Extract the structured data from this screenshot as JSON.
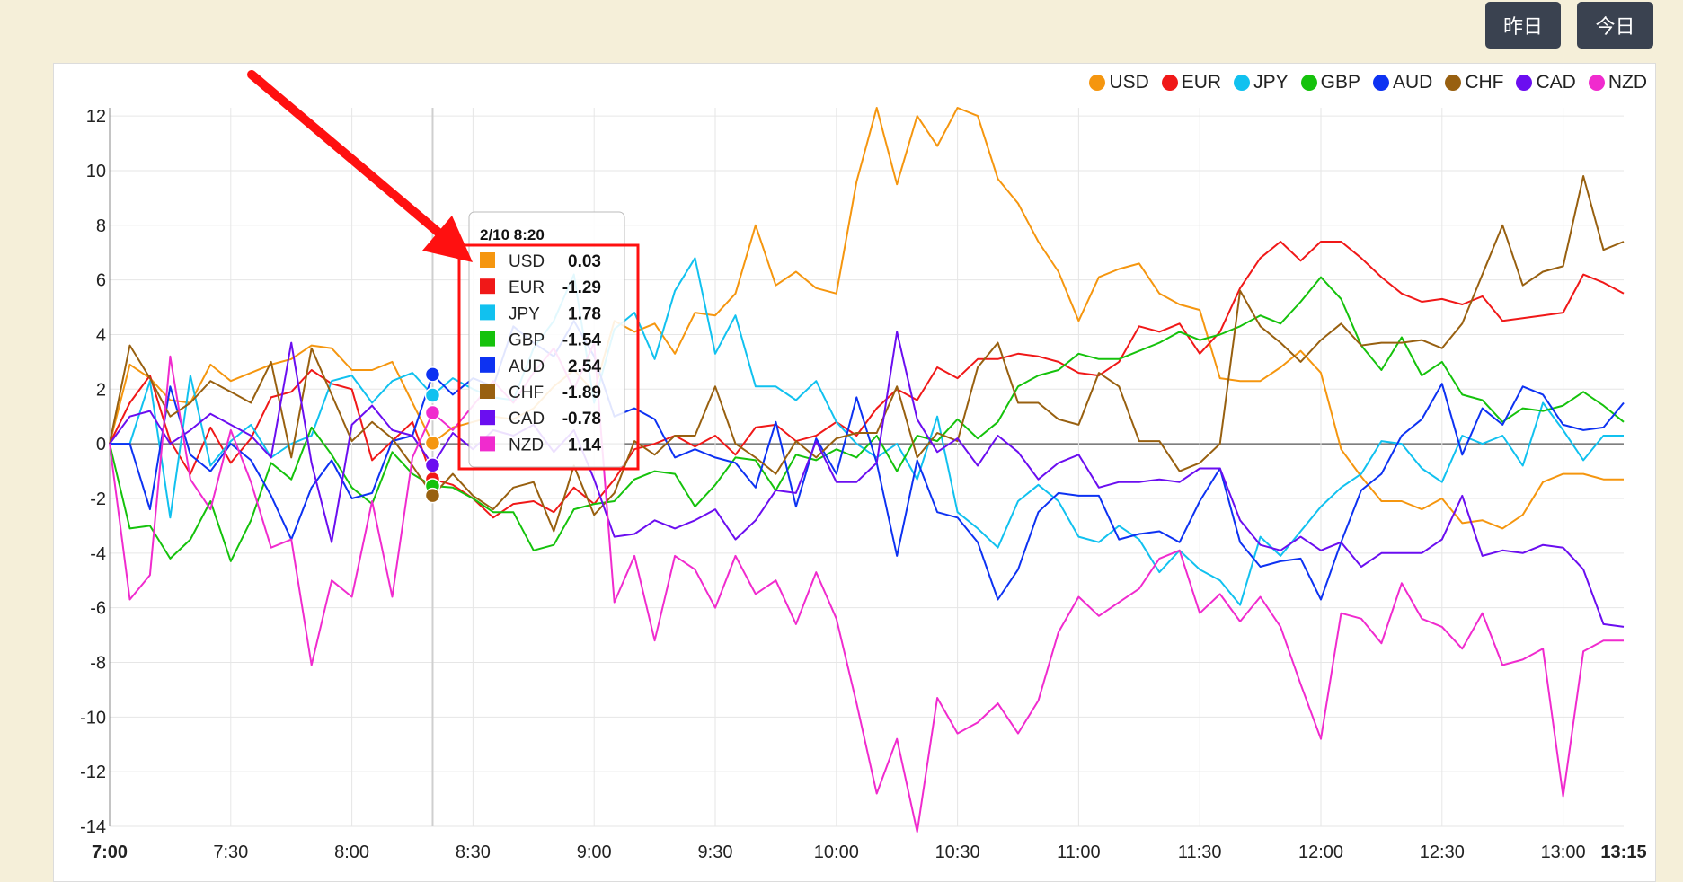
{
  "toolbar": {
    "yesterday_label": "昨日",
    "today_label": "今日"
  },
  "chart_data": {
    "type": "line",
    "title": "",
    "xlabel": "",
    "ylabel": "",
    "ylim": [
      -14,
      12.3
    ],
    "yticks": [
      12,
      10,
      8,
      6,
      4,
      2,
      0,
      -2,
      -4,
      -6,
      -8,
      -10,
      -12,
      -14
    ],
    "xticks": [
      "7:00",
      "7:30",
      "8:00",
      "8:30",
      "9:00",
      "9:30",
      "10:00",
      "10:30",
      "11:00",
      "11:30",
      "12:00",
      "12:30",
      "13:00",
      "13:15"
    ],
    "grid": true,
    "legend_position": "top-right",
    "x": [
      "7:00",
      "7:05",
      "7:10",
      "7:15",
      "7:20",
      "7:25",
      "7:30",
      "7:35",
      "7:40",
      "7:45",
      "7:50",
      "7:55",
      "8:00",
      "8:05",
      "8:10",
      "8:15",
      "8:20",
      "8:25",
      "8:30",
      "8:35",
      "8:40",
      "8:45",
      "8:50",
      "8:55",
      "9:00",
      "9:05",
      "9:10",
      "9:15",
      "9:20",
      "9:25",
      "9:30",
      "9:35",
      "9:40",
      "9:45",
      "9:50",
      "9:55",
      "10:00",
      "10:05",
      "10:10",
      "10:15",
      "10:20",
      "10:25",
      "10:30",
      "10:35",
      "10:40",
      "10:45",
      "10:50",
      "10:55",
      "11:00",
      "11:05",
      "11:10",
      "11:15",
      "11:20",
      "11:25",
      "11:30",
      "11:35",
      "11:40",
      "11:45",
      "11:50",
      "11:55",
      "12:00",
      "12:05",
      "12:10",
      "12:15",
      "12:20",
      "12:25",
      "12:30",
      "12:35",
      "12:40",
      "12:45",
      "12:50",
      "12:55",
      "13:00",
      "13:05",
      "13:10",
      "13:15"
    ],
    "series": [
      {
        "name": "USD",
        "color": "#f5960f",
        "values": [
          0,
          2.9,
          2.4,
          1.6,
          1.5,
          2.9,
          2.3,
          2.6,
          2.9,
          3.1,
          3.6,
          3.5,
          2.7,
          2.7,
          3,
          1.5,
          0.03,
          0.6,
          0.8,
          1,
          0.9,
          1.3,
          2.1,
          2.7,
          1.9,
          4.5,
          4.1,
          4.4,
          3.3,
          4.8,
          4.7,
          5.5,
          8,
          5.8,
          6.3,
          5.7,
          5.5,
          9.6,
          12.3,
          9.5,
          12,
          10.9,
          12.3,
          12,
          9.7,
          8.8,
          7.4,
          6.3,
          4.5,
          6.1,
          6.4,
          6.6,
          5.5,
          5.1,
          4.9,
          2.4,
          2.3,
          2.3,
          2.8,
          3.4,
          2.6,
          -0.2,
          -1.2,
          -2.1,
          -2.1,
          -2.4,
          -2,
          -2.9,
          -2.8,
          -3.1,
          -2.6,
          -1.4,
          -1.1,
          -1.1,
          -1.3,
          -1.3
        ]
      },
      {
        "name": "EUR",
        "color": "#f01818",
        "values": [
          0,
          1.5,
          2.5,
          0.1,
          -1.1,
          0.6,
          -0.7,
          0.2,
          1.7,
          1.9,
          2.7,
          2.2,
          2,
          -0.6,
          0.1,
          0.8,
          -1.29,
          -1.5,
          -2,
          -2.7,
          -2.2,
          -2.1,
          -2.5,
          -1.6,
          -2.2,
          -1.3,
          -0.2,
          0,
          0.3,
          -0.1,
          0.3,
          -0.4,
          0.6,
          0.7,
          0.1,
          0.3,
          0.8,
          0.3,
          1.3,
          2,
          1.6,
          2.8,
          2.4,
          3.1,
          3.1,
          3.3,
          3.2,
          3,
          2.6,
          2.5,
          3,
          4.3,
          4.1,
          4.4,
          3.3,
          4.1,
          5.7,
          6.8,
          7.4,
          6.7,
          7.4,
          7.4,
          6.8,
          6.1,
          5.5,
          5.2,
          5.3,
          5.1,
          5.4,
          4.5,
          4.6,
          4.7,
          4.8,
          6.2,
          5.9,
          5.5
        ]
      },
      {
        "name": "JPY",
        "color": "#11c1ef",
        "values": [
          0,
          0,
          2.3,
          -2.7,
          2.5,
          -0.8,
          0.1,
          0.7,
          -0.5,
          0,
          0.3,
          2.3,
          2.5,
          1.5,
          2.3,
          2.6,
          1.78,
          2.4,
          2,
          1.7,
          1.6,
          3.5,
          4.5,
          6.2,
          1.5,
          4.2,
          4.8,
          3.1,
          5.6,
          6.8,
          3.3,
          4.7,
          2.1,
          2.1,
          1.6,
          2.3,
          0.8,
          0,
          -0.5,
          0,
          -1.3,
          1,
          -2.5,
          -3.1,
          -3.8,
          -2.1,
          -1.5,
          -2.1,
          -3.4,
          -3.6,
          -3,
          -3.5,
          -4.7,
          -3.9,
          -4.6,
          -5,
          -5.9,
          -3.4,
          -4.1,
          -3.2,
          -2.3,
          -1.6,
          -1.1,
          0.1,
          0,
          -0.9,
          -1.4,
          0.3,
          0,
          0.3,
          -0.8,
          1.5,
          0.5,
          -0.6,
          0.3,
          0.3
        ]
      },
      {
        "name": "GBP",
        "color": "#15c20c",
        "values": [
          0,
          -3.1,
          -3,
          -4.2,
          -3.5,
          -2.1,
          -4.3,
          -2.8,
          -0.7,
          -1.3,
          0.6,
          -0.4,
          -1.6,
          -2.2,
          -0.3,
          -1.1,
          -1.54,
          -1.6,
          -2,
          -2.5,
          -2.5,
          -3.9,
          -3.7,
          -2.4,
          -2.2,
          -2.1,
          -1.3,
          -1,
          -1.1,
          -2.3,
          -1.5,
          -0.5,
          -0.6,
          -1.7,
          -0.4,
          -0.6,
          -0.2,
          -0.5,
          0.3,
          -1,
          0.3,
          0.1,
          0.9,
          0.2,
          0.8,
          2.1,
          2.5,
          2.7,
          3.3,
          3.1,
          3.1,
          3.4,
          3.7,
          4.1,
          3.8,
          4,
          4.3,
          4.7,
          4.4,
          5.2,
          6.1,
          5.3,
          3.6,
          2.7,
          3.9,
          2.5,
          3,
          1.8,
          1.6,
          0.8,
          1.3,
          1.2,
          1.4,
          1.9,
          1.4,
          0.8
        ]
      },
      {
        "name": "AUD",
        "color": "#0d32f2",
        "values": [
          0,
          0,
          -2.4,
          2.1,
          -0.4,
          -1,
          0,
          -0.6,
          -1.9,
          -3.5,
          -1.6,
          -0.6,
          -2,
          -1.8,
          0.1,
          0.3,
          2.54,
          1.8,
          2.4,
          2.1,
          4.3,
          3.7,
          3.2,
          4.5,
          3.2,
          1,
          1.3,
          0.9,
          -0.5,
          -0.2,
          -0.5,
          -0.7,
          -1.6,
          0.8,
          -2.3,
          0.2,
          -1.1,
          1.7,
          -0.7,
          -4.1,
          -0.6,
          -2.5,
          -2.7,
          -3.6,
          -5.7,
          -4.6,
          -2.5,
          -1.8,
          -1.9,
          -1.9,
          -3.5,
          -3.3,
          -3.2,
          -3.6,
          -2.1,
          -0.9,
          -3.6,
          -4.5,
          -4.3,
          -4.2,
          -5.7,
          -3.6,
          -1.7,
          -1.1,
          0.3,
          0.9,
          2.2,
          -0.4,
          1.3,
          0.7,
          2.1,
          1.8,
          0.7,
          0.5,
          0.6,
          1.5
        ]
      },
      {
        "name": "CHF",
        "color": "#986010",
        "values": [
          0,
          3.6,
          2.4,
          1,
          1.5,
          2.3,
          1.9,
          1.5,
          3,
          -0.5,
          3.5,
          1.8,
          0.1,
          0.8,
          0.2,
          -0.8,
          -1.89,
          -1.1,
          -1.9,
          -2.4,
          -1.6,
          -1.4,
          -3.2,
          -0.8,
          -2.6,
          -1.8,
          0.1,
          -0.4,
          0.3,
          0.3,
          2.1,
          0,
          -0.5,
          -1.1,
          0.1,
          -0.5,
          0.2,
          0.4,
          0.4,
          2.1,
          -0.5,
          0.4,
          0.1,
          2.8,
          3.7,
          1.5,
          1.5,
          0.9,
          0.7,
          2.6,
          2.1,
          0.1,
          0.1,
          -1,
          -0.7,
          0,
          5.6,
          4.3,
          3.7,
          3,
          3.8,
          4.4,
          3.6,
          3.7,
          3.7,
          3.8,
          3.5,
          4.4,
          6.2,
          8,
          5.8,
          6.3,
          6.5,
          9.8,
          7.1,
          7.4
        ]
      },
      {
        "name": "CAD",
        "color": "#6b0ef0",
        "values": [
          0,
          1,
          1.2,
          0,
          0.5,
          1.1,
          0.7,
          0.3,
          -0.5,
          3.7,
          -0.7,
          -3.6,
          0.7,
          1.4,
          0.5,
          0.3,
          -0.78,
          0.4,
          -0.2,
          0.5,
          0.3,
          0.7,
          -0.3,
          0.5,
          -1.3,
          -3.4,
          -3.3,
          -2.8,
          -3.1,
          -2.8,
          -2.4,
          -3.5,
          -2.8,
          -1.7,
          -1.8,
          0.1,
          -1.4,
          -1.4,
          -0.7,
          4.1,
          0.9,
          -0.3,
          0.2,
          -0.8,
          0.3,
          -0.3,
          -1.3,
          -0.7,
          -0.4,
          -1.6,
          -1.4,
          -1.4,
          -1.3,
          -1.4,
          -0.9,
          -0.9,
          -2.8,
          -3.7,
          -3.9,
          -3.4,
          -3.9,
          -3.6,
          -4.5,
          -4,
          -4,
          -4,
          -3.5,
          -1.9,
          -4.1,
          -3.9,
          -4,
          -3.7,
          -3.8,
          -4.6,
          -6.6,
          -6.7
        ]
      },
      {
        "name": "NZD",
        "color": "#f02bce",
        "values": [
          0,
          -5.7,
          -4.8,
          3.2,
          -1.3,
          -2.4,
          0.5,
          -1.4,
          -3.8,
          -3.5,
          -8.1,
          -5,
          -5.6,
          -2.1,
          -5.6,
          -0.5,
          1.14,
          0.5,
          1.4,
          2.3,
          1.5,
          2.6,
          3.5,
          2,
          3.7,
          -5.8,
          -4.1,
          -7.2,
          -4.1,
          -4.6,
          -6,
          -4.1,
          -5.5,
          -5,
          -6.6,
          -4.7,
          -6.4,
          -9.5,
          -12.8,
          -10.8,
          -14.2,
          -9.3,
          -10.6,
          -10.2,
          -9.5,
          -10.6,
          -9.4,
          -6.9,
          -5.6,
          -6.3,
          -5.8,
          -5.3,
          -4.2,
          -3.9,
          -6.2,
          -5.5,
          -6.5,
          -5.6,
          -6.7,
          -8.8,
          -10.8,
          -6.2,
          -6.4,
          -7.3,
          -5.1,
          -6.4,
          -6.7,
          -7.5,
          -6.2,
          -8.1,
          -7.9,
          -7.5,
          -12.9,
          -7.6,
          -7.2,
          -7.2
        ]
      }
    ],
    "tooltip": {
      "title": "2/10 8:20",
      "x_index": 16,
      "rows": [
        {
          "name": "USD",
          "color": "#f5960f",
          "value": "0.03"
        },
        {
          "name": "EUR",
          "color": "#f01818",
          "value": "-1.29"
        },
        {
          "name": "JPY",
          "color": "#11c1ef",
          "value": "1.78"
        },
        {
          "name": "GBP",
          "color": "#15c20c",
          "value": "-1.54"
        },
        {
          "name": "AUD",
          "color": "#0d32f2",
          "value": "2.54"
        },
        {
          "name": "CHF",
          "color": "#986010",
          "value": "-1.89"
        },
        {
          "name": "CAD",
          "color": "#6b0ef0",
          "value": "-0.78"
        },
        {
          "name": "NZD",
          "color": "#f02bce",
          "value": "1.14"
        }
      ]
    }
  },
  "annotation": {
    "arrow_color": "#ff1010",
    "highlight_color": "#ff1010"
  }
}
